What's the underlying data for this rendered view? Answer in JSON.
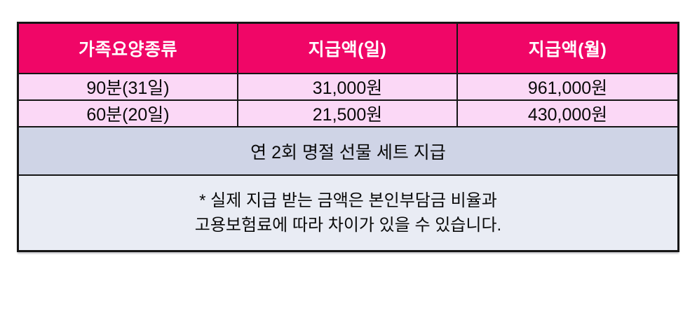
{
  "table": {
    "headers": {
      "col1": "가족요양종류",
      "col2": "지급액(일)",
      "col3": "지급액(월)"
    },
    "rows": [
      {
        "type": "90분(31일)",
        "daily": "31,000원",
        "monthly": "961,000원"
      },
      {
        "type": "60분(20일)",
        "daily": "21,500원",
        "monthly": "430,000원"
      }
    ],
    "notice": "연 2회 명절 선물 세트 지급",
    "footnote_line1": "* 실제 지급 받는 금액은 본인부담금 비율과",
    "footnote_line2": "고용보험료에 따라 차이가 있을 수 있습니다."
  },
  "colors": {
    "header_bg": "#F00667",
    "header_text": "#FFFFFF",
    "row_pink_bg": "#FBD8F6",
    "notice_bg": "#CFD4E6",
    "footnote_bg": "#E9ECF4",
    "border": "#161616",
    "body_text": "#0A0A0A"
  }
}
